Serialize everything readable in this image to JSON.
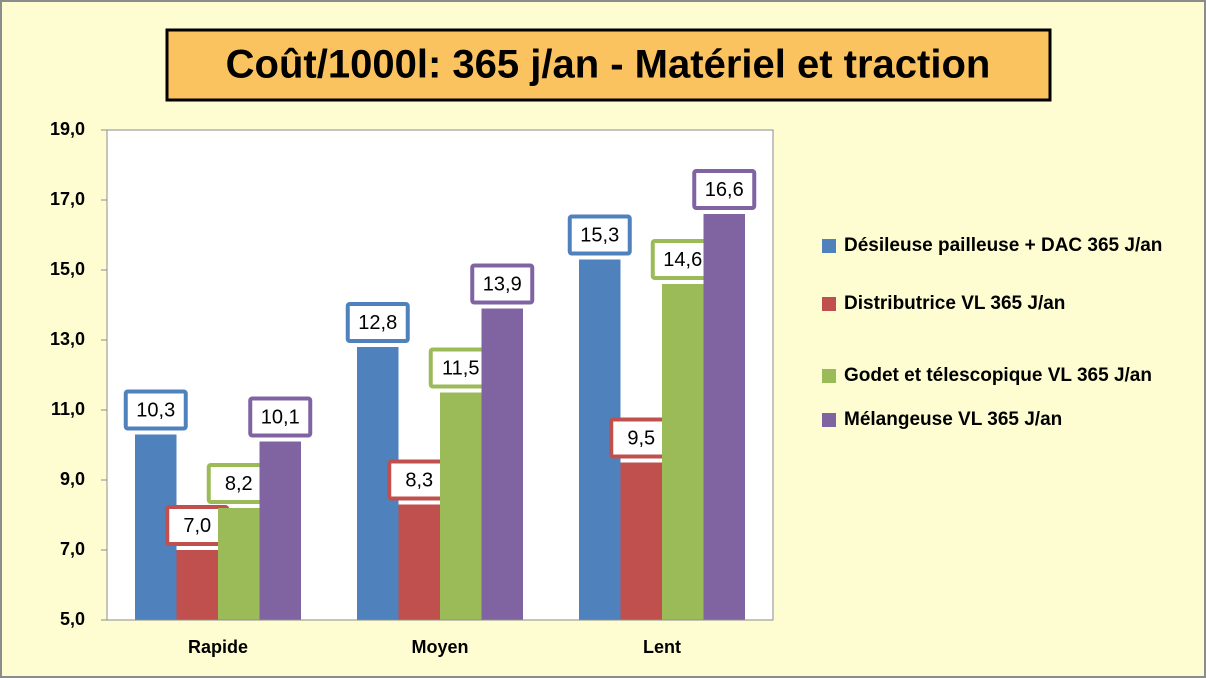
{
  "chart_data": {
    "type": "bar",
    "title": "Coût/1000l: 365 j/an - Matériel et traction",
    "categories": [
      "Rapide",
      "Moyen",
      "Lent"
    ],
    "series": [
      {
        "name": "Désileuse pailleuse + DAC 365 J/an",
        "color": "#4f81bd",
        "values": [
          10.3,
          12.8,
          15.3
        ],
        "value_labels": [
          "10,3",
          "12,8",
          "15,3"
        ]
      },
      {
        "name": "Distributrice VL 365 J/an",
        "color": "#c0504d",
        "values": [
          7.0,
          8.3,
          9.5
        ],
        "value_labels": [
          "7,0",
          "8,3",
          "9,5"
        ]
      },
      {
        "name": "Godet et télescopique VL 365 J/an",
        "color": "#9bbb59",
        "values": [
          8.2,
          11.5,
          14.6
        ],
        "value_labels": [
          "8,2",
          "11,5",
          "14,6"
        ]
      },
      {
        "name": "Mélangeuse VL 365 J/an",
        "color": "#8064a2",
        "values": [
          10.1,
          13.9,
          16.6
        ],
        "value_labels": [
          "10,1",
          "13,9",
          "16,6"
        ]
      }
    ],
    "ylim": [
      5,
      19
    ],
    "yticks": [
      {
        "value": 5,
        "label": "5,0"
      },
      {
        "value": 7,
        "label": "7,0"
      },
      {
        "value": 9,
        "label": "9,0"
      },
      {
        "value": 11,
        "label": "11,0"
      },
      {
        "value": 13,
        "label": "13,0"
      },
      {
        "value": 15,
        "label": "15,0"
      },
      {
        "value": 17,
        "label": "17,0"
      },
      {
        "value": 19,
        "label": "19,0"
      }
    ],
    "grid": false,
    "legend": "right"
  }
}
